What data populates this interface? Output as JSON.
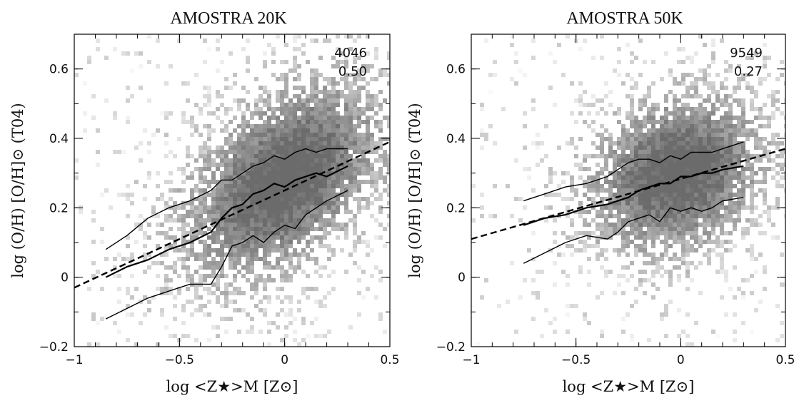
{
  "chart_data": [
    {
      "type": "heatmap",
      "title": "AMOSTRA 20K",
      "xlabel": "log <Z★>M [Z⊙]",
      "ylabel": "log (O/H) [O/H]⊙ (T04)",
      "xlim": [
        -1,
        0.5
      ],
      "ylim": [
        -0.2,
        0.7
      ],
      "xticks": [
        -1,
        -0.5,
        0,
        0.5
      ],
      "yticks": [
        -0.2,
        0,
        0.2,
        0.4,
        0.6
      ],
      "xtick_labels": [
        "−1",
        "−0.5",
        "0",
        "0.5"
      ],
      "ytick_labels": [
        "−0.2",
        "0",
        "0.2",
        "0.4",
        "0.6"
      ],
      "annotations": [
        "4046",
        "0.50"
      ],
      "density_center": [
        0.0,
        0.28
      ],
      "density_spread": [
        0.32,
        0.17
      ],
      "density_tilt": 0.28,
      "fit_line": {
        "x": [
          -1,
          0.5
        ],
        "y": [
          -0.03,
          0.39
        ]
      },
      "series": [
        {
          "x": [
            -0.85,
            -0.75,
            -0.65,
            -0.55,
            -0.45,
            -0.35,
            -0.3,
            -0.25,
            -0.2,
            -0.15,
            -0.1,
            -0.05,
            0,
            0.05,
            0.1,
            0.15,
            0.2,
            0.3
          ],
          "y": [
            0.08,
            0.12,
            0.17,
            0.2,
            0.22,
            0.25,
            0.28,
            0.28,
            0.3,
            0.32,
            0.33,
            0.35,
            0.34,
            0.36,
            0.37,
            0.36,
            0.37,
            0.37
          ]
        },
        {
          "x": [
            -0.85,
            -0.75,
            -0.65,
            -0.55,
            -0.45,
            -0.35,
            -0.3,
            -0.25,
            -0.2,
            -0.15,
            -0.1,
            -0.05,
            0,
            0.05,
            0.1,
            0.15,
            0.2,
            0.3
          ],
          "y": [
            0.0,
            0.03,
            0.05,
            0.08,
            0.1,
            0.13,
            0.17,
            0.2,
            0.21,
            0.24,
            0.25,
            0.27,
            0.26,
            0.28,
            0.29,
            0.3,
            0.29,
            0.32
          ]
        },
        {
          "x": [
            -0.85,
            -0.75,
            -0.65,
            -0.55,
            -0.45,
            -0.4,
            -0.35,
            -0.3,
            -0.25,
            -0.2,
            -0.15,
            -0.1,
            -0.05,
            0,
            0.05,
            0.1,
            0.15,
            0.2,
            0.3
          ],
          "y": [
            -0.12,
            -0.09,
            -0.06,
            -0.04,
            -0.02,
            -0.02,
            -0.02,
            0.03,
            0.09,
            0.1,
            0.12,
            0.1,
            0.13,
            0.15,
            0.14,
            0.18,
            0.2,
            0.22,
            0.25
          ]
        }
      ]
    },
    {
      "type": "heatmap",
      "title": "AMOSTRA 50K",
      "xlabel": "log <Z★>M [Z⊙]",
      "ylabel": "log (O/H) [O/H]⊙ (T04)",
      "xlim": [
        -1,
        0.5
      ],
      "ylim": [
        -0.2,
        0.7
      ],
      "xticks": [
        -1,
        -0.5,
        0,
        0.5
      ],
      "yticks": [
        -0.2,
        0,
        0.2,
        0.4,
        0.6
      ],
      "xtick_labels": [
        "−1",
        "−0.5",
        "0",
        "0.5"
      ],
      "ytick_labels": [
        "−0.2",
        "0",
        "0.2",
        "0.4",
        "0.6"
      ],
      "annotations": [
        "9549",
        "0.27"
      ],
      "density_center": [
        -0.02,
        0.3
      ],
      "density_spread": [
        0.28,
        0.15
      ],
      "density_tilt": 0.12,
      "fit_line": {
        "x": [
          -1,
          0.5
        ],
        "y": [
          0.11,
          0.37
        ]
      },
      "series": [
        {
          "x": [
            -0.75,
            -0.65,
            -0.55,
            -0.45,
            -0.35,
            -0.3,
            -0.25,
            -0.2,
            -0.15,
            -0.1,
            -0.05,
            0,
            0.05,
            0.1,
            0.15,
            0.2,
            0.3
          ],
          "y": [
            0.22,
            0.24,
            0.26,
            0.27,
            0.29,
            0.31,
            0.33,
            0.34,
            0.34,
            0.33,
            0.35,
            0.34,
            0.36,
            0.36,
            0.36,
            0.37,
            0.39
          ]
        },
        {
          "x": [
            -0.75,
            -0.65,
            -0.55,
            -0.45,
            -0.35,
            -0.3,
            -0.25,
            -0.2,
            -0.15,
            -0.1,
            -0.05,
            0,
            0.05,
            0.1,
            0.15,
            0.2,
            0.3
          ],
          "y": [
            0.15,
            0.17,
            0.18,
            0.2,
            0.21,
            0.22,
            0.23,
            0.25,
            0.26,
            0.27,
            0.27,
            0.29,
            0.29,
            0.3,
            0.3,
            0.31,
            0.32
          ]
        },
        {
          "x": [
            -0.75,
            -0.65,
            -0.55,
            -0.45,
            -0.35,
            -0.3,
            -0.25,
            -0.2,
            -0.15,
            -0.1,
            -0.05,
            0,
            0.05,
            0.1,
            0.15,
            0.2,
            0.3
          ],
          "y": [
            0.04,
            0.07,
            0.1,
            0.12,
            0.11,
            0.13,
            0.16,
            0.17,
            0.18,
            0.16,
            0.2,
            0.19,
            0.2,
            0.19,
            0.2,
            0.22,
            0.23
          ]
        }
      ]
    }
  ]
}
